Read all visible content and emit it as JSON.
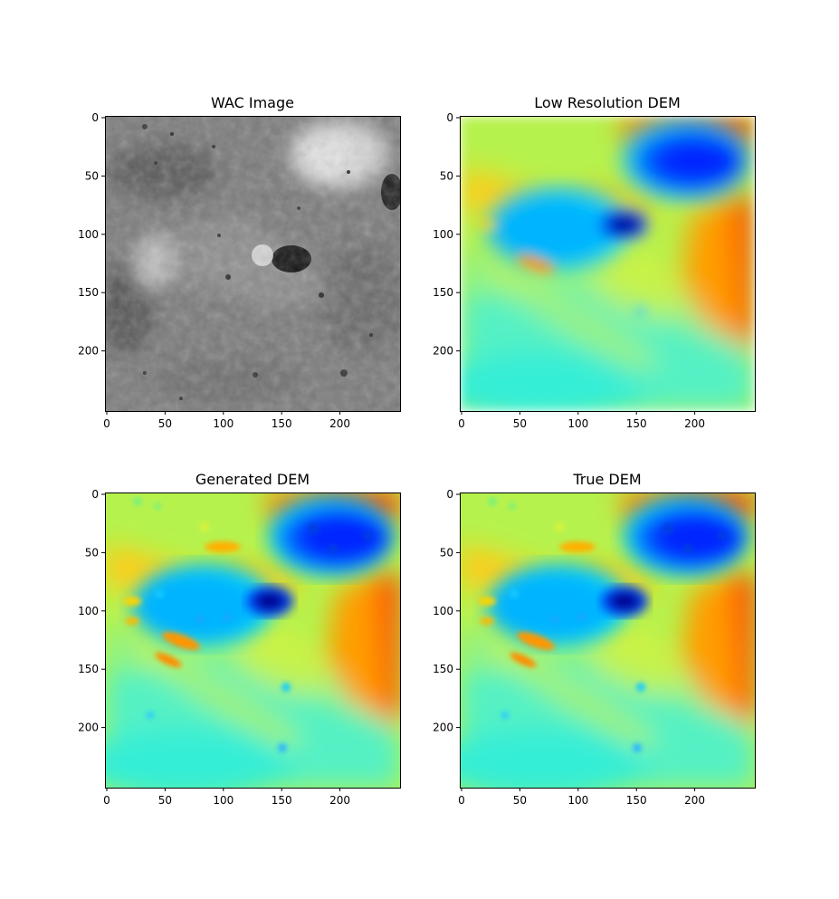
{
  "figure": {
    "panels": [
      {
        "id": "wac",
        "title": "WAC Image",
        "colormap": "gray",
        "x_ticks": [
          "0",
          "50",
          "100",
          "150",
          "200"
        ],
        "y_ticks": [
          "0",
          "50",
          "100",
          "150",
          "200"
        ],
        "x_range": [
          0,
          250
        ],
        "y_range": [
          0,
          250
        ]
      },
      {
        "id": "lowres",
        "title": "Low Resolution DEM",
        "colormap": "jet",
        "x_ticks": [
          "0",
          "50",
          "100",
          "150",
          "200"
        ],
        "y_ticks": [
          "0",
          "50",
          "100",
          "150",
          "200"
        ],
        "x_range": [
          0,
          250
        ],
        "y_range": [
          0,
          250
        ]
      },
      {
        "id": "generated",
        "title": "Generated DEM",
        "colormap": "jet",
        "x_ticks": [
          "0",
          "50",
          "100",
          "150",
          "200"
        ],
        "y_ticks": [
          "0",
          "50",
          "100",
          "150",
          "200"
        ],
        "x_range": [
          0,
          250
        ],
        "y_range": [
          0,
          250
        ]
      },
      {
        "id": "true",
        "title": "True DEM",
        "colormap": "jet",
        "x_ticks": [
          "0",
          "50",
          "100",
          "150",
          "200"
        ],
        "y_ticks": [
          "0",
          "50",
          "100",
          "150",
          "200"
        ],
        "x_range": [
          0,
          250
        ],
        "y_range": [
          0,
          250
        ]
      }
    ],
    "colors": {
      "axis": "#000000",
      "jet_background": "#b8f050"
    }
  }
}
